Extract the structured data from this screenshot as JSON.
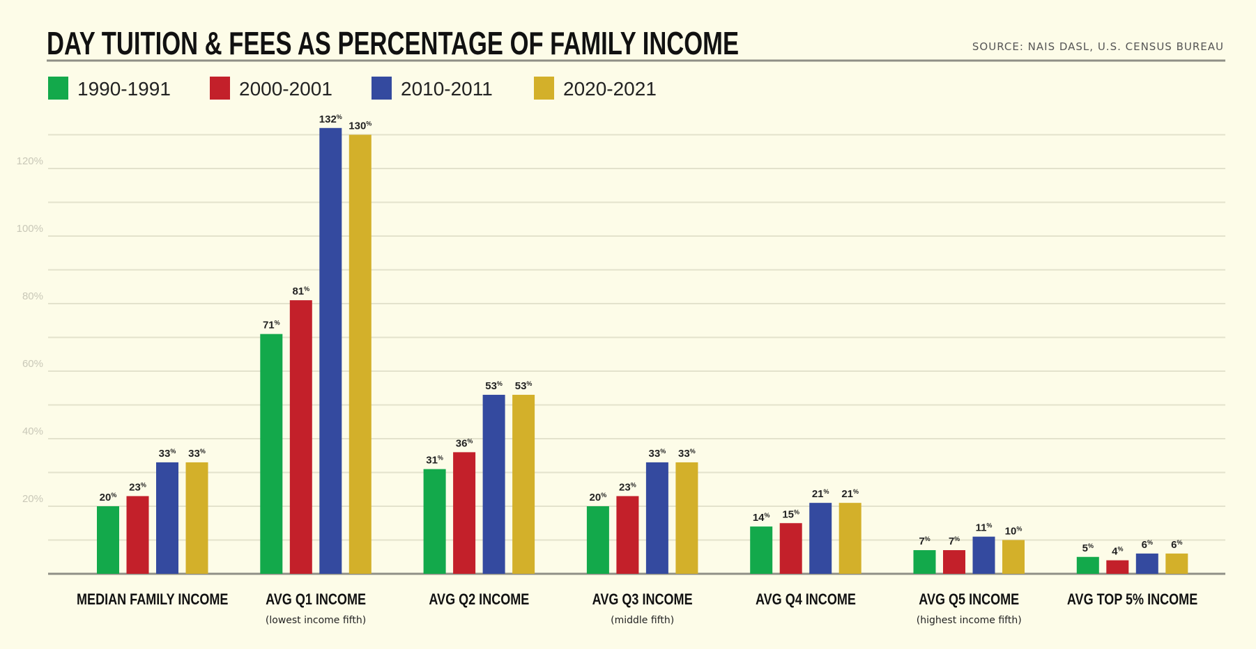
{
  "chart_data": {
    "type": "bar",
    "title": "DAY TUITION & FEES AS PERCENTAGE OF FAMILY INCOME",
    "source": "SOURCE: NAIS DASL, U.S. CENSUS BUREAU",
    "categories": [
      "MEDIAN FAMILY INCOME",
      "AVG Q1 INCOME",
      "AVG Q2 INCOME",
      "AVG Q3 INCOME",
      "AVG Q4 INCOME",
      "AVG Q5 INCOME",
      "AVG TOP 5% INCOME"
    ],
    "category_sublabels": [
      "",
      "(lowest income fifth)",
      "",
      "(middle fifth)",
      "",
      "(highest income fifth)",
      ""
    ],
    "series": [
      {
        "name": "1990-1991",
        "color": "#13a94b",
        "values": [
          20,
          71,
          31,
          20,
          14,
          7,
          5
        ]
      },
      {
        "name": "2000-2001",
        "color": "#c3202a",
        "values": [
          23,
          81,
          36,
          23,
          15,
          7,
          4
        ]
      },
      {
        "name": "2010-2011",
        "color": "#344a9f",
        "values": [
          33,
          132,
          53,
          33,
          21,
          11,
          6
        ]
      },
      {
        "name": "2020-2021",
        "color": "#d3b02a",
        "values": [
          33,
          130,
          53,
          33,
          21,
          10,
          6
        ]
      }
    ],
    "value_suffix": "%",
    "y_ticks": [
      "20%",
      "40%",
      "60%",
      "80%",
      "100%",
      "120%"
    ],
    "y_tick_values": [
      20,
      40,
      60,
      80,
      100,
      120
    ],
    "ylim": [
      0,
      130
    ],
    "grid": true,
    "grid_step": 10,
    "legend_position": "top-left",
    "xlabel": "",
    "ylabel": "",
    "background": "#fdfce8"
  }
}
